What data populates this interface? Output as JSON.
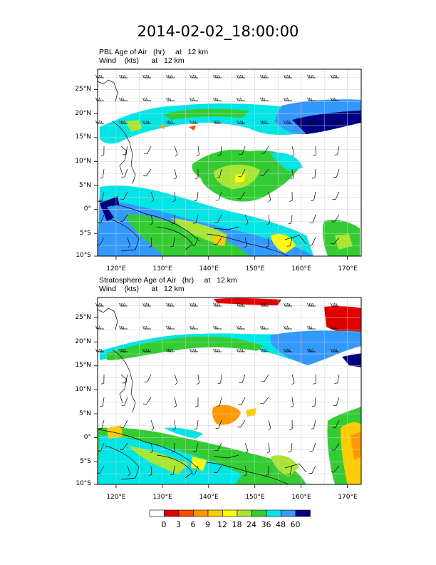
{
  "figure": {
    "title": "2014-02-02_18:00:00"
  },
  "panels": [
    {
      "title_line1": "PBL Age of Air   (hr)     at   12 km",
      "title_line2": "Wind    (kts)      at   12 km"
    },
    {
      "title_line1": "Stratosphere Age of Air   (hr)     at   12 km",
      "title_line2": "Wind    (kts)      at   12 km"
    }
  ],
  "axes": {
    "lat_labels": [
      "25°N",
      "20°N",
      "15°N",
      "10°N",
      "5°N",
      "0°",
      "5°S",
      "10°S"
    ],
    "lon_labels": [
      "120°E",
      "130°E",
      "140°E",
      "150°E",
      "160°E",
      "170°E"
    ],
    "lat_range": [
      -10,
      29
    ],
    "lon_range": [
      116,
      173
    ]
  },
  "colorbar": {
    "labels": [
      "0",
      "3",
      "6",
      "9",
      "12",
      "18",
      "24",
      "36",
      "48",
      "60"
    ],
    "colors": [
      "#ffffff",
      "#e00000",
      "#ff4a00",
      "#ff9900",
      "#ffcc00",
      "#ffff00",
      "#a8e632",
      "#33cc33",
      "#00e6e6",
      "#3399ff",
      "#000080"
    ]
  }
}
